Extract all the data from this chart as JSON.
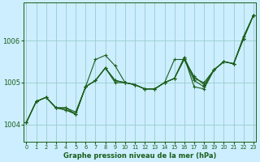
{
  "title": "Graphe pression niveau de la mer (hPa)",
  "bg_color": "#cceeff",
  "grid_color": "#99cccc",
  "line_color": "#1a5e1a",
  "xlim": [
    -0.3,
    23.3
  ],
  "ylim": [
    1003.6,
    1006.9
  ],
  "yticks": [
    1004,
    1005,
    1006
  ],
  "xticks": [
    0,
    1,
    2,
    3,
    4,
    5,
    6,
    7,
    8,
    9,
    10,
    11,
    12,
    13,
    14,
    15,
    16,
    17,
    18,
    19,
    20,
    21,
    22,
    23
  ],
  "series": [
    [
      1004.05,
      1004.55,
      1004.65,
      1004.4,
      1004.4,
      1004.3,
      1004.9,
      1005.55,
      1005.65,
      1005.4,
      1005.0,
      1004.95,
      1004.85,
      1004.85,
      1005.0,
      1005.55,
      1005.55,
      1005.15,
      1004.95,
      1005.3,
      1005.5,
      1005.45,
      1006.1,
      1006.6
    ],
    [
      1004.05,
      1004.55,
      1004.65,
      1004.4,
      1004.4,
      1004.25,
      1004.9,
      1005.05,
      1005.35,
      1005.0,
      1005.0,
      1004.95,
      1004.85,
      1004.85,
      1005.0,
      1005.1,
      1005.55,
      1005.05,
      1004.9,
      1005.3,
      1005.5,
      1005.45,
      1006.05,
      1006.6
    ],
    [
      1004.05,
      1004.55,
      1004.65,
      1004.4,
      1004.35,
      1004.25,
      1004.9,
      1005.05,
      1005.35,
      1005.05,
      1005.0,
      1004.95,
      1004.85,
      1004.85,
      1005.0,
      1005.1,
      1005.6,
      1004.9,
      1004.85,
      1005.3,
      1005.5,
      1005.45,
      1006.05,
      1006.6
    ],
    [
      1004.05,
      1004.55,
      1004.65,
      1004.4,
      1004.35,
      1004.25,
      1004.9,
      1005.05,
      1005.35,
      1005.05,
      1005.0,
      1004.95,
      1004.85,
      1004.85,
      1005.0,
      1005.1,
      1005.6,
      1005.1,
      1005.0,
      1005.3,
      1005.5,
      1005.45,
      1006.05,
      1006.6
    ]
  ]
}
